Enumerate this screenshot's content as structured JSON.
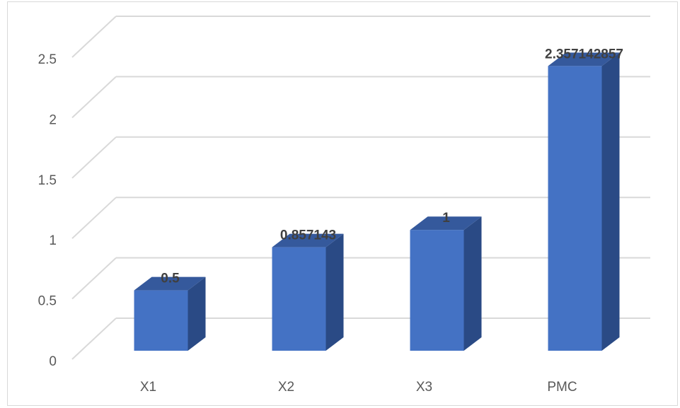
{
  "chart_data": {
    "type": "bar",
    "style": "3d-clustered-column",
    "categories": [
      "X1",
      "X2",
      "X3",
      "PMC"
    ],
    "values": [
      0.5,
      0.857143,
      1,
      2.357142857
    ],
    "data_labels": [
      "0.5",
      "0.857143",
      "1",
      "2.357142857"
    ],
    "ylim": [
      0,
      2.5
    ],
    "yticks": [
      "0",
      "0.5",
      "1",
      "1.5",
      "2",
      "2.5"
    ],
    "grid": true,
    "legend": "none",
    "colors": {
      "bar_front": "#4472C4",
      "bar_side": "#2A4A85",
      "bar_top": "#35599C",
      "grid": "#d9d9d9"
    }
  }
}
